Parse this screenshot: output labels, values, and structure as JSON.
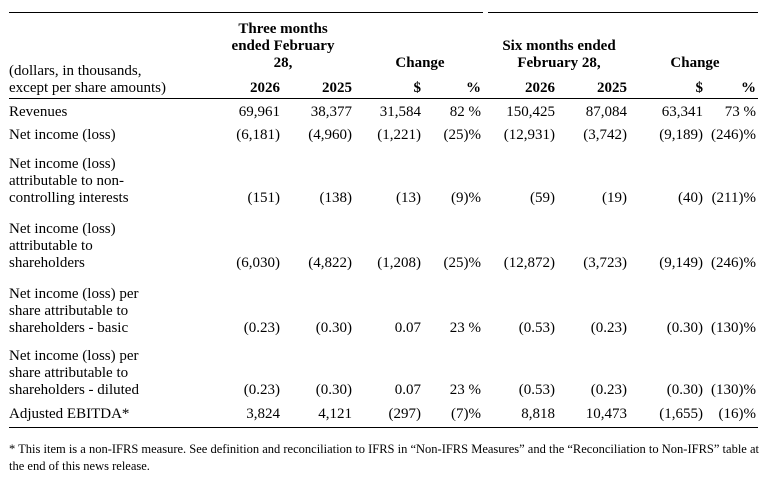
{
  "header": {
    "period1": [
      "Three months",
      "ended February",
      "28,"
    ],
    "period2": [
      "Six months ended",
      "February 28,"
    ],
    "change": "Change",
    "col_labels": [
      "2026",
      "2025",
      "$",
      "%",
      "2026",
      "2025",
      "$",
      "%"
    ],
    "stub": [
      "(dollars, in thousands,",
      "except per share amounts)"
    ]
  },
  "rows": [
    {
      "label": [
        "Revenues"
      ],
      "values": [
        "69,961",
        "38,377",
        "31,584",
        "82 %",
        "150,425",
        "87,084",
        "63,341",
        "73 %"
      ]
    },
    {
      "label": [
        "Net income (loss)"
      ],
      "values": [
        "(6,181)",
        "(4,960)",
        "(1,221)",
        "(25)%",
        "(12,931)",
        "(3,742)",
        "(9,189)",
        "(246)%"
      ]
    },
    {
      "label": [
        "Net income (loss)",
        "attributable to non-",
        "controlling interests"
      ],
      "values": [
        "(151)",
        "(138)",
        "(13)",
        "(9)%",
        "(59)",
        "(19)",
        "(40)",
        "(211)%"
      ]
    },
    {
      "label": [
        "Net income (loss)",
        "attributable to",
        "shareholders"
      ],
      "values": [
        "(6,030)",
        "(4,822)",
        "(1,208)",
        "(25)%",
        "(12,872)",
        "(3,723)",
        "(9,149)",
        "(246)%"
      ]
    },
    {
      "label": [
        "Net income (loss) per",
        "share attributable to",
        "shareholders - basic"
      ],
      "values": [
        "(0.23)",
        "(0.30)",
        "0.07",
        "23 %",
        "(0.53)",
        "(0.23)",
        "(0.30)",
        "(130)%"
      ]
    },
    {
      "label": [
        "Net income (loss) per",
        "share attributable to",
        "shareholders - diluted"
      ],
      "values": [
        "(0.23)",
        "(0.30)",
        "0.07",
        "23 %",
        "(0.53)",
        "(0.23)",
        "(0.30)",
        "(130)%"
      ]
    },
    {
      "label": [
        "Adjusted EBITDA*"
      ],
      "values": [
        "3,824",
        "4,121",
        "(297)",
        "(7)%",
        "8,818",
        "10,473",
        "(1,655)",
        "(16)%"
      ]
    }
  ],
  "footnote": "* This item is a non-IFRS measure. See definition and reconciliation to IFRS in “Non-IFRS Measures” and the “Reconciliation to Non-IFRS” table at the end of this news release."
}
